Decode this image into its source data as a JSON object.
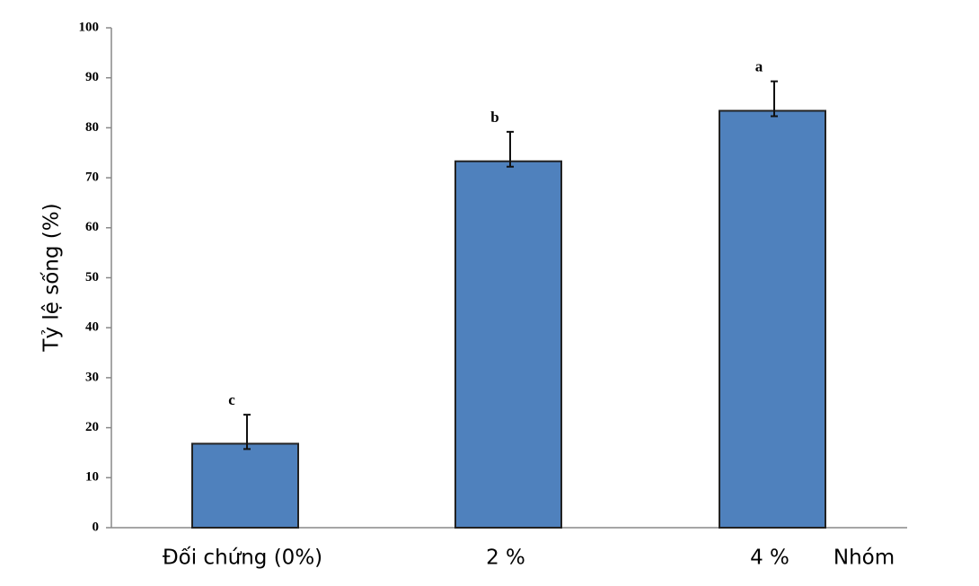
{
  "chart_data": {
    "type": "bar",
    "y_label": "Tỷ lệ sống (%)",
    "x_label": "Nhóm",
    "categories": [
      "Đối chứng (0%)",
      "2 %",
      "4 %"
    ],
    "values": [
      16.8,
      73.3,
      83.4
    ],
    "errors": [
      5.8,
      5.9,
      5.9
    ],
    "annotations": [
      "c",
      "b",
      "a"
    ],
    "color": "#4f81bd",
    "ylim": [
      0,
      100
    ],
    "yticks": [
      0,
      10,
      20,
      30,
      40,
      50,
      60,
      70,
      80,
      90,
      100
    ]
  }
}
